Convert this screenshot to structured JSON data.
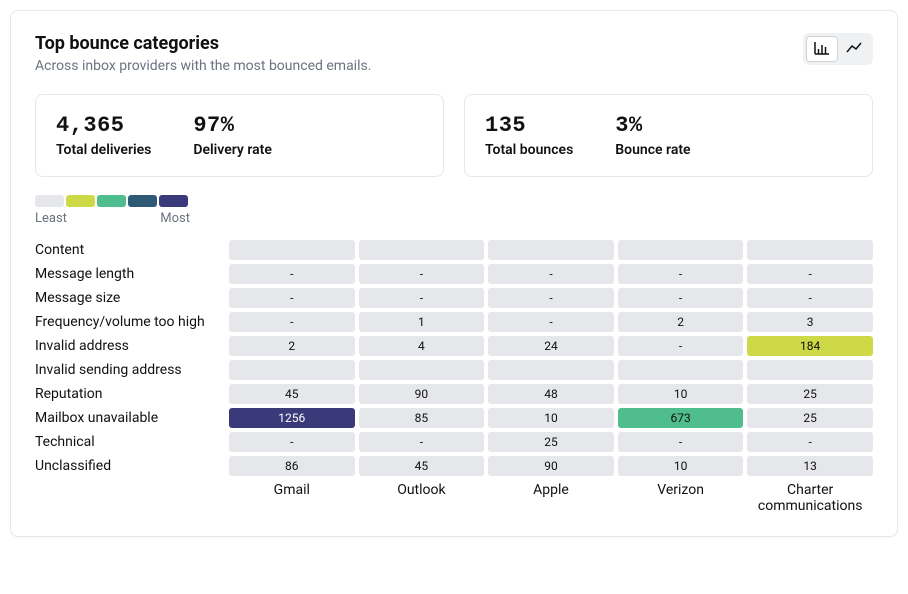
{
  "header": {
    "title": "Top bounce categories",
    "subtitle": "Across inbox providers with the most bounced emails."
  },
  "summary": {
    "left": [
      {
        "value": "4,365",
        "label": "Total deliveries"
      },
      {
        "value": "97%",
        "label": "Delivery rate"
      }
    ],
    "right": [
      {
        "value": "135",
        "label": "Total bounces"
      },
      {
        "value": "3%",
        "label": "Bounce rate"
      }
    ]
  },
  "legend": {
    "least_label": "Least",
    "most_label": "Most",
    "colors": [
      "#e6e7ea",
      "#cdd946",
      "#4fbd8d",
      "#2f5a76",
      "#3a3a7a"
    ]
  },
  "heatmap": {
    "columns": [
      "Gmail",
      "Outlook",
      "Apple",
      "Verizon",
      "Charter communications"
    ],
    "row_labels": [
      "Content",
      "Message length",
      "Message size",
      "Frequency/volume too high",
      "Invalid address",
      "Invalid sending address",
      "Reputation",
      "Mailbox unavailable",
      "Technical",
      "Unclassified"
    ],
    "dash": "-",
    "placeholder": "",
    "cells": [
      [
        {
          "v": "",
          "c": 0
        },
        {
          "v": "",
          "c": 0
        },
        {
          "v": "",
          "c": 0
        },
        {
          "v": "",
          "c": 0
        },
        {
          "v": "",
          "c": 0
        }
      ],
      [
        {
          "v": "-",
          "c": 0
        },
        {
          "v": "-",
          "c": 0
        },
        {
          "v": "-",
          "c": 0
        },
        {
          "v": "-",
          "c": 0
        },
        {
          "v": "-",
          "c": 0
        }
      ],
      [
        {
          "v": "-",
          "c": 0
        },
        {
          "v": "-",
          "c": 0
        },
        {
          "v": "-",
          "c": 0
        },
        {
          "v": "-",
          "c": 0
        },
        {
          "v": "-",
          "c": 0
        }
      ],
      [
        {
          "v": "-",
          "c": 0
        },
        {
          "v": "1",
          "c": 0
        },
        {
          "v": "-",
          "c": 0
        },
        {
          "v": "2",
          "c": 0
        },
        {
          "v": "3",
          "c": 0
        }
      ],
      [
        {
          "v": "2",
          "c": 0
        },
        {
          "v": "4",
          "c": 0
        },
        {
          "v": "24",
          "c": 0
        },
        {
          "v": "-",
          "c": 0
        },
        {
          "v": "184",
          "c": 1
        }
      ],
      [
        {
          "v": "",
          "c": 0
        },
        {
          "v": "",
          "c": 0
        },
        {
          "v": "",
          "c": 0
        },
        {
          "v": "",
          "c": 0
        },
        {
          "v": "",
          "c": 0
        }
      ],
      [
        {
          "v": "45",
          "c": 0
        },
        {
          "v": "90",
          "c": 0
        },
        {
          "v": "48",
          "c": 0
        },
        {
          "v": "10",
          "c": 0
        },
        {
          "v": "25",
          "c": 0
        }
      ],
      [
        {
          "v": "1256",
          "c": 4
        },
        {
          "v": "85",
          "c": 0
        },
        {
          "v": "10",
          "c": 0
        },
        {
          "v": "673",
          "c": 2
        },
        {
          "v": "25",
          "c": 0
        }
      ],
      [
        {
          "v": "-",
          "c": 0
        },
        {
          "v": "-",
          "c": 0
        },
        {
          "v": "25",
          "c": 0
        },
        {
          "v": "-",
          "c": 0
        },
        {
          "v": "-",
          "c": 0
        }
      ],
      [
        {
          "v": "86",
          "c": 0
        },
        {
          "v": "45",
          "c": 0
        },
        {
          "v": "90",
          "c": 0
        },
        {
          "v": "10",
          "c": 0
        },
        {
          "v": "13",
          "c": 0
        }
      ]
    ],
    "cell_text_colors": {
      "light": "#ffffff",
      "dark": "#111111"
    }
  }
}
